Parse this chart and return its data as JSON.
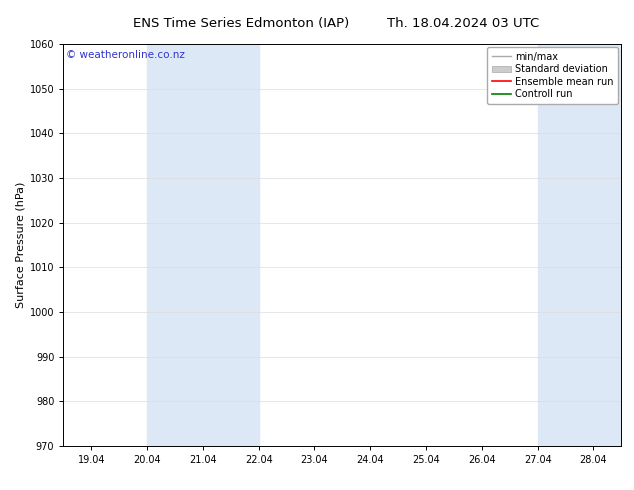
{
  "title_left": "ENS Time Series Edmonton (IAP)",
  "title_right": "Th. 18.04.2024 03 UTC",
  "ylabel": "Surface Pressure (hPa)",
  "ylim": [
    970,
    1060
  ],
  "yticks": [
    970,
    980,
    990,
    1000,
    1010,
    1020,
    1030,
    1040,
    1050,
    1060
  ],
  "xtick_labels": [
    "19.04",
    "20.04",
    "21.04",
    "22.04",
    "23.04",
    "24.04",
    "25.04",
    "26.04",
    "27.04",
    "28.04"
  ],
  "xtick_positions": [
    0,
    1,
    2,
    3,
    4,
    5,
    6,
    7,
    8,
    9
  ],
  "xlim": [
    -0.5,
    9.5
  ],
  "shade_bands": [
    {
      "xmin": 1.0,
      "xmax": 3.0
    },
    {
      "xmin": 8.0,
      "xmax": 9.5
    }
  ],
  "shade_color": "#dce8f5",
  "watermark": "© weatheronline.co.nz",
  "watermark_color": "#3333cc",
  "legend_entries": [
    "min/max",
    "Standard deviation",
    "Ensemble mean run",
    "Controll run"
  ],
  "legend_colors_line": [
    "#aaaaaa",
    "#cccccc",
    "#ff0000",
    "#008000"
  ],
  "bg_color": "#ffffff",
  "plot_bg_color": "#ffffff",
  "grid_color": "#dddddd",
  "border_color": "#000000",
  "title_fontsize": 9.5,
  "tick_fontsize": 7,
  "ylabel_fontsize": 8,
  "watermark_fontsize": 7.5,
  "legend_fontsize": 7
}
